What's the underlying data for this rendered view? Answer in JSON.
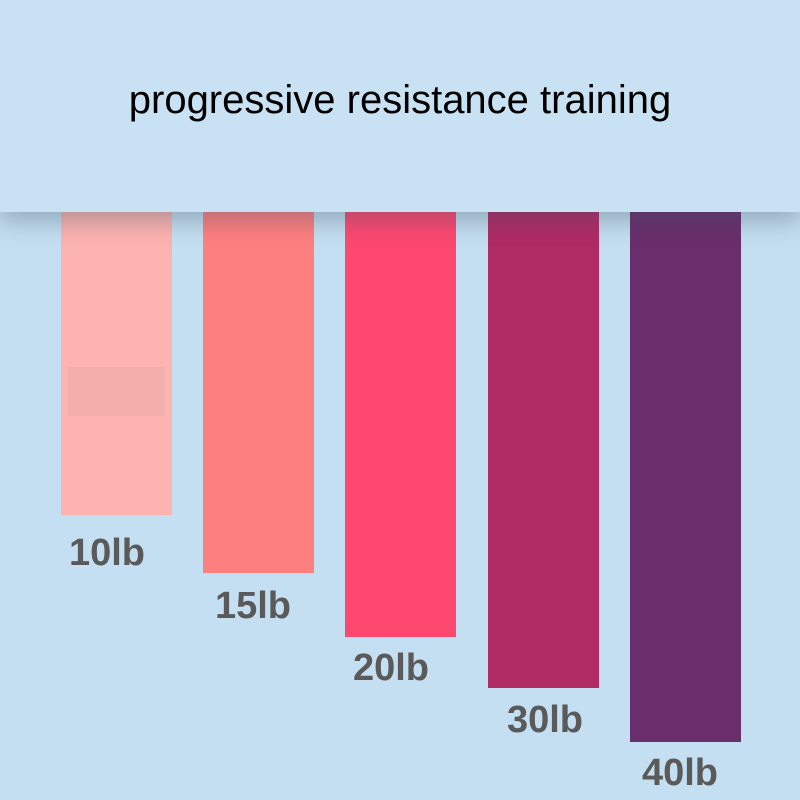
{
  "header": {
    "title": "progressive resistance training"
  },
  "bands": [
    {
      "label": "10lb",
      "color": "#fdb3b0"
    },
    {
      "label": "15lb",
      "color": "#fe7f7f"
    },
    {
      "label": "20lb",
      "color": "#fe4870"
    },
    {
      "label": "30lb",
      "color": "#b02a64"
    },
    {
      "label": "40lb",
      "color": "#6a2e6c"
    }
  ]
}
